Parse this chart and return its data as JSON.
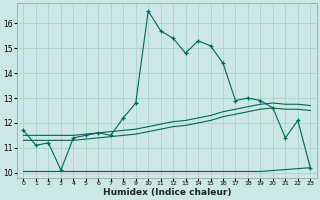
{
  "xlabel": "Humidex (Indice chaleur)",
  "ylabel": "",
  "bg_color": "#cce8e4",
  "grid_color": "#aad4cc",
  "line_color": "#006655",
  "xlim": [
    -0.5,
    23.5
  ],
  "ylim": [
    9.8,
    16.8
  ],
  "xticks": [
    0,
    1,
    2,
    3,
    4,
    5,
    6,
    7,
    8,
    9,
    10,
    11,
    12,
    13,
    14,
    15,
    16,
    17,
    18,
    19,
    20,
    21,
    22,
    23
  ],
  "yticks": [
    10,
    11,
    12,
    13,
    14,
    15,
    16
  ],
  "line1_x": [
    0,
    1,
    2,
    3,
    4,
    5,
    6,
    7,
    8,
    9,
    10,
    11,
    12,
    13,
    14,
    15,
    16,
    17,
    18,
    19,
    20,
    21,
    22,
    23
  ],
  "line1_y": [
    11.7,
    11.1,
    11.2,
    10.1,
    11.4,
    11.5,
    11.6,
    11.5,
    12.2,
    12.8,
    16.5,
    15.7,
    15.4,
    14.8,
    15.3,
    15.1,
    14.4,
    12.9,
    13.0,
    12.9,
    12.6,
    11.4,
    12.1,
    10.2
  ],
  "line2_x": [
    0,
    1,
    2,
    3,
    4,
    5,
    6,
    7,
    8,
    9,
    10,
    11,
    12,
    13,
    14,
    15,
    16,
    17,
    18,
    19,
    20,
    21,
    22,
    23
  ],
  "line2_y": [
    11.5,
    11.5,
    11.5,
    11.5,
    11.5,
    11.55,
    11.6,
    11.65,
    11.7,
    11.75,
    11.85,
    11.95,
    12.05,
    12.1,
    12.2,
    12.3,
    12.45,
    12.55,
    12.65,
    12.75,
    12.8,
    12.75,
    12.75,
    12.7
  ],
  "line3_x": [
    0,
    1,
    2,
    3,
    4,
    5,
    6,
    7,
    8,
    9,
    10,
    11,
    12,
    13,
    14,
    15,
    16,
    17,
    18,
    19,
    20,
    21,
    22,
    23
  ],
  "line3_y": [
    11.3,
    11.3,
    11.3,
    11.3,
    11.3,
    11.35,
    11.4,
    11.45,
    11.5,
    11.55,
    11.65,
    11.75,
    11.85,
    11.9,
    12.0,
    12.1,
    12.25,
    12.35,
    12.45,
    12.55,
    12.6,
    12.55,
    12.55,
    12.5
  ],
  "line4_x": [
    0,
    3,
    19,
    23
  ],
  "line4_y": [
    10.05,
    10.05,
    10.05,
    10.2
  ],
  "xlabel_fontsize": 6.5,
  "ytick_fontsize": 5.5,
  "xtick_fontsize": 4.5
}
